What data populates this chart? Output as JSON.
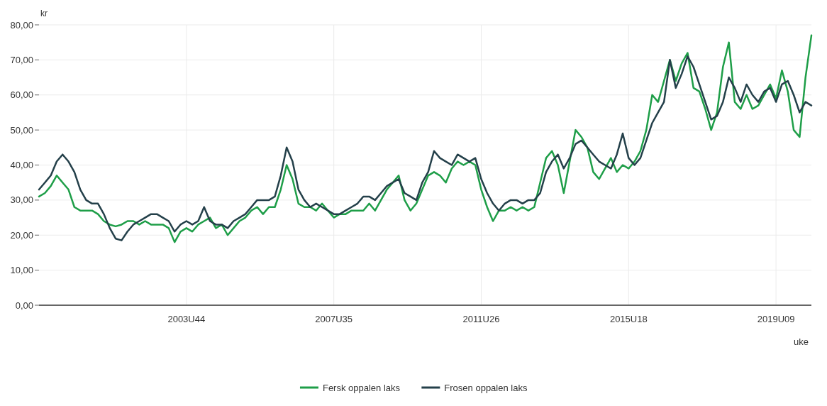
{
  "chart_data": {
    "type": "line",
    "xlabel": "uke",
    "ylabel": "kr",
    "categories": [
      null,
      null,
      null,
      null,
      null,
      null,
      null,
      null,
      null,
      null,
      null,
      null,
      null,
      null,
      null,
      null,
      null,
      null,
      null,
      null,
      null,
      null,
      null,
      null,
      null,
      "2003U44",
      null,
      null,
      null,
      null,
      null,
      null,
      null,
      null,
      null,
      null,
      null,
      null,
      null,
      null,
      null,
      null,
      null,
      null,
      null,
      null,
      null,
      null,
      null,
      null,
      "2007U35",
      null,
      null,
      null,
      null,
      null,
      null,
      null,
      null,
      null,
      null,
      null,
      null,
      null,
      null,
      null,
      null,
      null,
      null,
      null,
      null,
      null,
      null,
      null,
      null,
      "2011U26",
      null,
      null,
      null,
      null,
      null,
      null,
      null,
      null,
      null,
      null,
      null,
      null,
      null,
      null,
      null,
      null,
      null,
      null,
      null,
      null,
      null,
      null,
      null,
      null,
      "2015U18",
      null,
      null,
      null,
      null,
      null,
      null,
      null,
      null,
      null,
      null,
      null,
      null,
      null,
      null,
      null,
      null,
      null,
      null,
      null,
      null,
      null,
      null,
      null,
      null,
      "2019U09",
      null,
      null,
      null,
      null,
      null,
      null
    ],
    "series": [
      {
        "name": "Fersk oppalen laks",
        "color": "#1e9e48",
        "values": [
          31,
          32,
          34,
          37,
          35,
          33,
          28,
          27,
          27,
          27,
          26,
          24,
          23,
          22.5,
          23,
          24,
          24,
          23,
          24,
          23,
          23,
          23,
          22,
          18,
          21,
          22,
          21,
          23,
          24,
          25,
          22,
          23,
          20,
          22,
          24,
          25,
          27,
          28,
          26,
          28,
          28,
          33,
          40,
          36,
          29,
          28,
          28,
          27,
          29,
          27,
          25,
          26,
          26,
          27,
          27,
          27,
          29,
          27,
          30,
          33,
          35,
          37,
          30,
          27,
          29,
          33,
          37,
          38,
          37,
          35,
          39,
          41,
          40,
          41,
          40,
          33,
          28,
          24,
          27,
          27,
          28,
          27,
          28,
          27,
          28,
          35,
          42,
          44,
          40,
          32,
          41,
          50,
          48,
          45,
          38,
          36,
          39,
          42,
          38,
          40,
          39,
          41,
          44,
          50,
          60,
          58,
          64,
          70,
          64,
          69,
          72,
          62,
          61,
          56,
          50,
          55,
          68,
          75,
          58,
          56,
          60,
          56,
          57,
          60,
          63,
          59,
          67,
          61,
          50,
          48,
          65,
          77
        ]
      },
      {
        "name": "Frosen oppalen laks",
        "color": "#24404a",
        "values": [
          33,
          35,
          37,
          41,
          43,
          41,
          38,
          33,
          30,
          29,
          29,
          26,
          22,
          19,
          18.5,
          21,
          23,
          24,
          25,
          26,
          26,
          25,
          24,
          21,
          23,
          24,
          23,
          24,
          28,
          24,
          23,
          23,
          22,
          24,
          25,
          26,
          28,
          30,
          30,
          30,
          31,
          37,
          45,
          41,
          33,
          30,
          28,
          29,
          28,
          27,
          26,
          26,
          27,
          28,
          29,
          31,
          31,
          30,
          32,
          34,
          35,
          36,
          32,
          31,
          30,
          35,
          38,
          44,
          42,
          41,
          40,
          43,
          42,
          41,
          42,
          36,
          32,
          29,
          27,
          29,
          30,
          30,
          29,
          30,
          30,
          32,
          38,
          41,
          43,
          39,
          42,
          46,
          47,
          45,
          43,
          41,
          40,
          39,
          43,
          49,
          42,
          40,
          42,
          47,
          52,
          55,
          58,
          70,
          62,
          66,
          71,
          68,
          63,
          58,
          53,
          54,
          58,
          65,
          62,
          58,
          63,
          60,
          58,
          61,
          62,
          58,
          63,
          64,
          60,
          55,
          58,
          57
        ]
      }
    ],
    "ylim": [
      0,
      80
    ],
    "yticks": [
      {
        "value": 0,
        "label": "0,00"
      },
      {
        "value": 10,
        "label": "10,00"
      },
      {
        "value": 20,
        "label": "20,00"
      },
      {
        "value": 30,
        "label": "30,00"
      },
      {
        "value": 40,
        "label": "40,00"
      },
      {
        "value": 50,
        "label": "50,00"
      },
      {
        "value": 60,
        "label": "60,00"
      },
      {
        "value": 70,
        "label": "70,00"
      },
      {
        "value": 80,
        "label": "80,00"
      }
    ],
    "grid": true,
    "legend": "bottom"
  }
}
